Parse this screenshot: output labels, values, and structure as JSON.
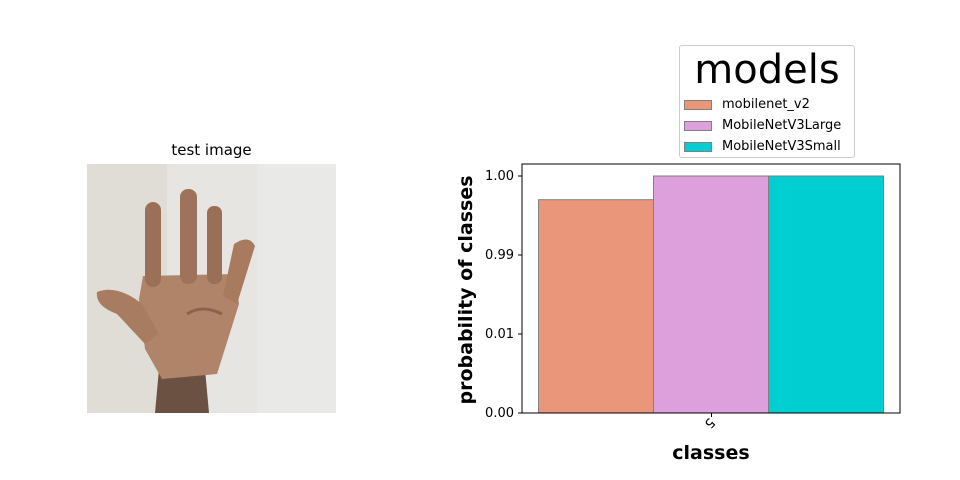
{
  "image_panel": {
    "title": "test image"
  },
  "chart_data": {
    "type": "bar",
    "categories": [
      "5"
    ],
    "series": [
      {
        "name": "mobilenet_v2",
        "values": [
          0.9
        ],
        "color": "#E9967A"
      },
      {
        "name": "MobileNetV3Large",
        "values": [
          1.0
        ],
        "color": "#DDA0DD"
      },
      {
        "name": "MobileNetV3Small",
        "values": [
          1.0
        ],
        "color": "#00CED1"
      }
    ],
    "title": "",
    "xlabel": "classes",
    "ylabel": "probability of classes",
    "yticks": [
      "0.00",
      "0.01",
      "0.99",
      "1.00"
    ],
    "ylim": [
      0,
      1.0
    ],
    "legend": {
      "title": "models",
      "placement": "upper-right, above axes"
    },
    "grid": false
  }
}
